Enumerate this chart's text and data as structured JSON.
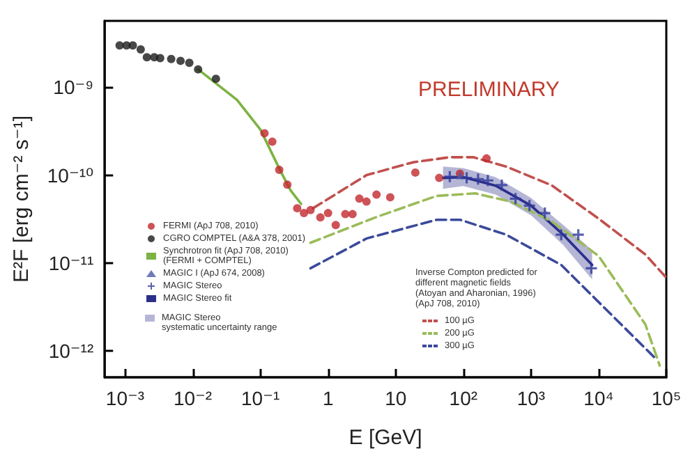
{
  "chart_data": {
    "type": "scatter",
    "xlabel": "E [GeV]",
    "ylabel": "E²F [erg cm⁻² s⁻¹]",
    "log": "xy",
    "grid": false,
    "legend": "bottom left",
    "legend_title": "Inverse Compton predicted for\ndifferent magnetic fields\n(Atoyan and Aharonian, 1996)\n(ApJ 708, 2010)",
    "xlim": [
      0.0005,
      100000
    ],
    "ylim": [
      5e-13,
      5.7e-09
    ],
    "xticks": [
      {
        "value": 0.001,
        "label": "10⁻³"
      },
      {
        "value": 0.01,
        "label": "10⁻²"
      },
      {
        "value": 0.1,
        "label": "10⁻¹"
      },
      1,
      10,
      {
        "value": 100,
        "label": "10²"
      },
      {
        "value": 1000,
        "label": "10³"
      },
      {
        "value": 10000,
        "label": "10⁴"
      },
      {
        "value": 100000,
        "label": "10⁵"
      }
    ],
    "yticks": [
      {
        "value": 1e-12,
        "label": "10⁻¹²"
      },
      {
        "value": 1e-11,
        "label": "10⁻¹¹"
      },
      {
        "value": 1e-10,
        "label": "10⁻¹⁰"
      },
      {
        "value": 1e-09,
        "label": "10⁻⁹"
      }
    ],
    "annotations": [
      "PRELIMINARY",
      "MAGIC Stereo\nsystematic uncertainty range"
    ],
    "series": [
      {
        "name": "FERMI (ApJ 708, 2010)",
        "color": "#c0282d",
        "marker": "circle",
        "x": [
          0.115,
          0.15,
          0.19,
          0.25,
          0.35,
          0.44,
          0.55,
          0.77,
          1,
          1.3,
          1.8,
          2.3,
          2.9,
          3.7,
          5.2,
          8.3,
          19.5,
          44,
          89,
          220
        ],
        "values": [
          3e-10,
          2.4e-10,
          1.15e-10,
          7.8e-11,
          4.2e-11,
          3.7e-11,
          4e-11,
          3.3e-11,
          3.7e-11,
          2.7e-11,
          3.6e-11,
          3.6e-11,
          5.4e-11,
          5e-11,
          6e-11,
          5.6e-11,
          1.07e-10,
          9.3e-11,
          1.04e-10,
          1.55e-10
        ]
      },
      {
        "name": "CGRO COMPTEL (A&A 378, 2001)",
        "color": "#1a1a1a",
        "marker": "circle",
        "x": [
          0.00083,
          0.00105,
          0.0013,
          0.0017,
          0.0021,
          0.0027,
          0.0033,
          0.0048,
          0.0066,
          0.0089,
          0.012,
          0.022
        ],
        "values": [
          3e-09,
          3e-09,
          3e-09,
          2.7e-09,
          2.2e-09,
          2.2e-09,
          2.15e-09,
          2.1e-09,
          2e-09,
          1.9e-09,
          1.6e-09,
          1.25e-09
        ]
      },
      {
        "type": "line",
        "name": "Synchrotron fit (ApJ 708, 2010)\n(FERMI + COMPTEL)",
        "color": "#7cb342",
        "marker": "none",
        "line_style": "solid",
        "x": [
          0.012,
          0.045,
          0.1,
          0.2,
          0.28,
          0.4
        ],
        "values": [
          1.6e-09,
          7.2e-10,
          3.3e-10,
          1.1e-10,
          6.7e-11,
          4.7e-11
        ]
      },
      {
        "name": "MAGIC I (ApJ 674, 2008)",
        "color": "#4a5aa8",
        "marker": "triangle",
        "x": [
          90
        ],
        "values": [
          1e-10
        ]
      },
      {
        "name": "MAGIC Stereo",
        "color": "#2f3a9a",
        "marker": "cross",
        "x": [
          63,
          112,
          165,
          230,
          370,
          590,
          950,
          1600,
          2800,
          5000,
          7800
        ],
        "values": [
          9.6e-11,
          9.3e-11,
          9e-11,
          8.7e-11,
          7.7e-11,
          5.4e-11,
          4.5e-11,
          3.7e-11,
          2.1e-11,
          2.1e-11,
          8.7e-12
        ]
      },
      {
        "type": "line",
        "name": "MAGIC Stereo fit",
        "color": "#2b2f8a",
        "marker": "none",
        "line_style": "solid",
        "x": [
          50,
          100,
          300,
          1000,
          3000,
          8000
        ],
        "values": [
          9.3e-11,
          9.5e-11,
          7.6e-11,
          4.5e-11,
          2.1e-11,
          9.5e-12
        ],
        "lower": [
          7e-11,
          7.5e-11,
          6e-11,
          3.5e-11,
          1.6e-11,
          6.5e-12
        ],
        "upper": [
          1.25e-10,
          1.2e-10,
          9.5e-11,
          5.5e-11,
          2.7e-11,
          1.4e-11
        ]
      },
      {
        "type": "line",
        "name": "100 µG",
        "color": "#c0504d",
        "marker": "none",
        "line_style": "dashed",
        "x": [
          0.6,
          3.7,
          18,
          63,
          140,
          430,
          2000,
          10000,
          49000,
          100000
        ],
        "values": [
          4.2e-11,
          1e-10,
          1.4e-10,
          1.6e-10,
          1.6e-10,
          1.25e-10,
          7.7e-11,
          3.2e-11,
          1.25e-11,
          6.8e-12
        ]
      },
      {
        "type": "line",
        "name": "200 µG",
        "color": "#9bbb59",
        "marker": "none",
        "line_style": "dashed",
        "x": [
          0.55,
          5,
          40,
          150,
          500,
          2000,
          10000,
          49000,
          80000
        ],
        "values": [
          1.7e-11,
          3.3e-11,
          5.8e-11,
          6.2e-11,
          5e-11,
          3e-11,
          1.2e-11,
          2e-12,
          6.8e-13
        ]
      },
      {
        "type": "line",
        "name": "300 µG",
        "color": "#3b4a9a",
        "marker": "none",
        "line_style": "dashed",
        "x": [
          0.55,
          3.7,
          40,
          90,
          430,
          2800,
          68000
        ],
        "values": [
          8.7e-12,
          1.9e-11,
          3.1e-11,
          3.1e-11,
          2.1e-11,
          9.5e-12,
          8.3e-13
        ]
      }
    ]
  }
}
